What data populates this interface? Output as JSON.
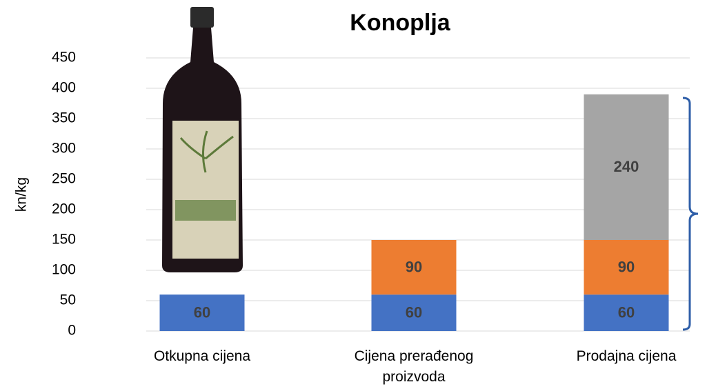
{
  "chart_data": {
    "type": "stacked_bar",
    "title": "Konoplja",
    "y_label": "kn/kg",
    "categories": [
      "Otkupna cijena",
      "Cijena prerađenog proizvoda",
      "Prodajna cijena"
    ],
    "series": [
      {
        "color": "#4472c4",
        "values": [
          60,
          60,
          60
        ]
      },
      {
        "color": "#ed7d31",
        "values": [
          null,
          90,
          90
        ]
      },
      {
        "color": "#a5a5a5",
        "values": [
          null,
          null,
          240
        ]
      }
    ],
    "ylim": [
      0,
      450
    ],
    "yticks": [
      0,
      50,
      100,
      150,
      200,
      250,
      300,
      350,
      400,
      450
    ],
    "grid": true
  }
}
